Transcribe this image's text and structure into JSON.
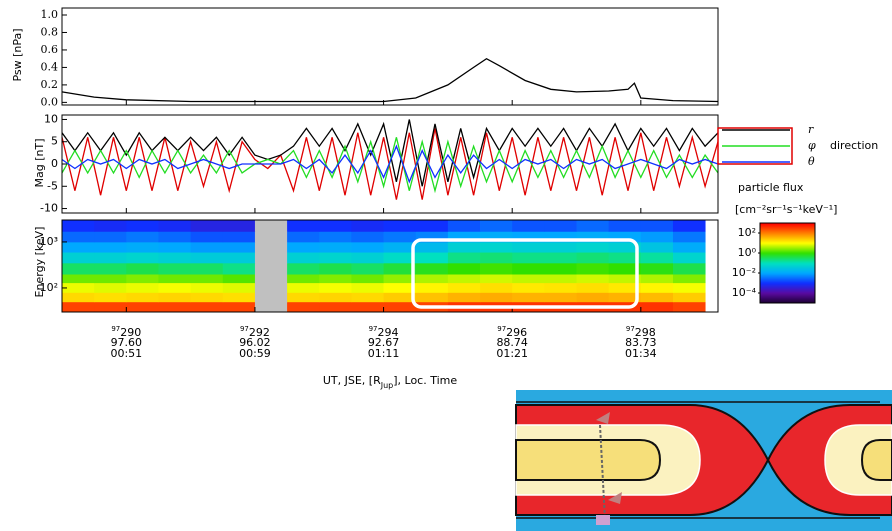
{
  "chart_data": [
    {
      "type": "line",
      "ylabel": "Psw [nPa]",
      "x": [
        289,
        289.5,
        290,
        291,
        292,
        293,
        294,
        294.5,
        295,
        295.4,
        295.6,
        295.8,
        296.2,
        296.6,
        297,
        297.5,
        297.8,
        297.9,
        298,
        298.5,
        299.2
      ],
      "series": [
        {
          "color": "#000000",
          "values": [
            0.12,
            0.06,
            0.03,
            0.01,
            0.01,
            0.01,
            0.01,
            0.05,
            0.2,
            0.4,
            0.5,
            0.42,
            0.25,
            0.15,
            0.12,
            0.13,
            0.15,
            0.22,
            0.05,
            0.02,
            0.01
          ]
        }
      ],
      "xlim": [
        289,
        299.2
      ],
      "ylim": [
        -0.03,
        1.08
      ],
      "yticks": [
        {
          "value": 0,
          "label": "0.0"
        },
        {
          "value": 0.2,
          "label": "0.2"
        },
        {
          "value": 0.4,
          "label": "0.4"
        },
        {
          "value": 0.6,
          "label": "0.6"
        },
        {
          "value": 0.8,
          "label": "0.8"
        },
        {
          "value": 1,
          "label": "1.0"
        }
      ],
      "xticks": [
        290,
        292,
        294,
        296,
        298
      ]
    },
    {
      "type": "line",
      "ylabel": "Mag [nT]",
      "legend_note": "direction",
      "x": [
        289,
        289.2,
        289.4,
        289.6,
        289.8,
        290,
        290.2,
        290.4,
        290.6,
        290.8,
        291,
        291.2,
        291.4,
        291.6,
        291.8,
        292,
        292.2,
        292.4,
        292.6,
        292.8,
        293,
        293.2,
        293.4,
        293.6,
        293.8,
        294,
        294.2,
        294.4,
        294.6,
        294.8,
        295,
        295.2,
        295.4,
        295.6,
        295.8,
        296,
        296.2,
        296.4,
        296.6,
        296.8,
        297,
        297.2,
        297.4,
        297.6,
        297.8,
        298,
        298.2,
        298.4,
        298.6,
        298.8,
        299,
        299.2
      ],
      "series": [
        {
          "color": "#e00000",
          "values": [
            6,
            -6,
            6,
            -7,
            6,
            -6,
            6,
            -6,
            6,
            -6,
            5,
            -5,
            5,
            -6,
            5,
            1,
            -1,
            2,
            -6,
            6,
            -6,
            6,
            -7,
            7,
            -7,
            6,
            -8,
            7,
            -8,
            8,
            -7,
            6,
            -7,
            7,
            -6,
            6,
            -7,
            6,
            -6,
            6,
            -6,
            6,
            -7,
            6,
            -6,
            7,
            -6,
            6,
            -5,
            6,
            -5,
            5
          ]
        },
        {
          "name": "r",
          "color": "#000000",
          "values": [
            7,
            3,
            7,
            3,
            7,
            2,
            7,
            3,
            6,
            3,
            6,
            3,
            6,
            2,
            6,
            2,
            1,
            2,
            4,
            8,
            4,
            8,
            3,
            9,
            2,
            9,
            -4,
            10,
            -5,
            9,
            -4,
            8,
            -3,
            8,
            3,
            8,
            4,
            8,
            4,
            8,
            3,
            8,
            4,
            9,
            3,
            8,
            4,
            8,
            3,
            8,
            4,
            7
          ]
        },
        {
          "name": "φ",
          "color": "#22dd22",
          "values": [
            -2,
            3,
            -2,
            3,
            -2,
            3,
            -3,
            3,
            -2,
            3,
            -2,
            2,
            -2,
            3,
            -2,
            0,
            1,
            0,
            3,
            -3,
            3,
            -3,
            4,
            -4,
            5,
            -5,
            6,
            -6,
            5,
            -6,
            5,
            -5,
            4,
            -4,
            3,
            -4,
            3,
            -3,
            3,
            -3,
            3,
            -3,
            4,
            -3,
            3,
            -3,
            3,
            -3,
            2,
            -3,
            2,
            -2
          ]
        },
        {
          "name": "θ",
          "color": "#1030ff",
          "values": [
            1,
            -1,
            1,
            0,
            1,
            -1,
            1,
            0,
            1,
            -1,
            0,
            1,
            0,
            -1,
            0,
            0,
            0,
            0,
            1,
            -1,
            1,
            -2,
            2,
            -2,
            3,
            -3,
            4,
            -4,
            3,
            -3,
            2,
            -2,
            2,
            -1,
            1,
            -1,
            1,
            0,
            1,
            -1,
            1,
            0,
            1,
            -1,
            0,
            1,
            0,
            -1,
            1,
            0,
            1,
            0
          ]
        }
      ],
      "xlim": [
        289,
        299.2
      ],
      "ylim": [
        -11,
        11
      ],
      "yticks": [
        -10,
        -5,
        0,
        5,
        10
      ],
      "xticks": [
        290,
        292,
        294,
        296,
        298
      ]
    },
    {
      "type": "heatmap",
      "ylabel": "Energy [keV]",
      "yscale": "log",
      "xbins": [
        289,
        289.5,
        290,
        290.5,
        291,
        291.5,
        292,
        292.5,
        293,
        293.5,
        294,
        294.5,
        295,
        295.5,
        296,
        296.5,
        297,
        297.5,
        298,
        298.5,
        299
      ],
      "ybins": [
        30,
        50,
        80,
        130,
        200,
        350,
        600,
        1000,
        1700,
        3000
      ],
      "z": [
        [
          300,
          300,
          300,
          300,
          300,
          300,
          null,
          300,
          300,
          300,
          300,
          300,
          400,
          400,
          400,
          400,
          400,
          400,
          400,
          300
        ],
        [
          20,
          18,
          20,
          22,
          20,
          18,
          null,
          20,
          22,
          20,
          25,
          30,
          40,
          45,
          40,
          40,
          45,
          40,
          35,
          25
        ],
        [
          8,
          7,
          8,
          9,
          8,
          7,
          null,
          8,
          9,
          8,
          10,
          12,
          15,
          18,
          15,
          16,
          18,
          15,
          12,
          9
        ],
        [
          2,
          2,
          2.5,
          2,
          2,
          1.5,
          null,
          2,
          2.5,
          2,
          3,
          4,
          5,
          6,
          5,
          5,
          6,
          5,
          4,
          2.5
        ],
        [
          0.3,
          0.3,
          0.4,
          0.3,
          0.3,
          0.2,
          null,
          0.3,
          0.4,
          0.3,
          0.5,
          0.7,
          1,
          1.2,
          1,
          1,
          1.2,
          1,
          0.8,
          0.4
        ],
        [
          0.05,
          0.05,
          0.06,
          0.05,
          0.04,
          0.04,
          null,
          0.05,
          0.06,
          0.05,
          0.08,
          0.1,
          0.2,
          0.25,
          0.2,
          0.2,
          0.25,
          0.2,
          0.15,
          0.06
        ],
        [
          0.01,
          0.01,
          0.012,
          0.01,
          0.008,
          0.008,
          null,
          0.01,
          0.012,
          0.01,
          0.015,
          0.02,
          0.05,
          0.06,
          0.05,
          0.05,
          0.06,
          0.05,
          0.03,
          0.012
        ],
        [
          0.003,
          0.003,
          0.004,
          0.003,
          0.002,
          0.002,
          null,
          0.003,
          0.004,
          0.003,
          0.004,
          0.005,
          0.01,
          0.012,
          0.01,
          0.01,
          0.012,
          0.01,
          0.008,
          0.004
        ],
        [
          0.001,
          0.0008,
          0.001,
          0.0008,
          0.0005,
          0.0005,
          null,
          0.001,
          0.001,
          0.0008,
          0.001,
          0.001,
          0.002,
          0.003,
          0.002,
          0.002,
          0.003,
          0.002,
          0.002,
          0.001
        ]
      ],
      "xlim": [
        289,
        299.2
      ],
      "ylim": [
        30,
        3000
      ],
      "yticks": [
        {
          "value": 1000,
          "label": "10³"
        },
        {
          "value": 100,
          "label": "10²"
        }
      ],
      "xticks": [
        290,
        292,
        294,
        296,
        298
      ],
      "xtick_info": [
        {
          "year": "97",
          "r": "97.60",
          "lt": "00:51"
        },
        {
          "year": "97",
          "r": "96.02",
          "lt": "00:59"
        },
        {
          "year": "97",
          "r": "92.67",
          "lt": "01:11"
        },
        {
          "year": "97",
          "r": "88.74",
          "lt": "01:21"
        },
        {
          "year": "97",
          "r": "83.73",
          "lt": "01:34"
        }
      ],
      "xlabel": [
        "UT, JSE, [R",
        "Jup",
        "], Loc. Time"
      ],
      "gap_color": "#c0c0c0",
      "colormap": [
        "#1a0030",
        "#5a0aa0",
        "#1030ff",
        "#00a8ff",
        "#00e0c0",
        "#30e000",
        "#ffff00",
        "#ff8000",
        "#ff0000"
      ],
      "colorbar_title": "particle flux",
      "colorbar_units": "[cm⁻²sr⁻¹s⁻¹keV⁻¹]",
      "zlim": [
        1e-05,
        1000
      ],
      "zticks": [
        {
          "value": 100,
          "label": "10²"
        },
        {
          "value": 1,
          "label": "10⁰"
        },
        {
          "value": 0.01,
          "label": "10⁻²"
        },
        {
          "value": 0.0001,
          "label": "10⁻⁴"
        }
      ]
    }
  ]
}
